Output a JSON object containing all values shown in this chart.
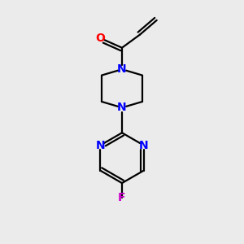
{
  "bg_color": "#ebebeb",
  "bond_color": "#000000",
  "N_color": "#0000ff",
  "O_color": "#ff0000",
  "F_color": "#cc00cc",
  "line_width": 1.6,
  "font_size": 10,
  "figsize": [
    3.0,
    3.0
  ],
  "dpi": 100,
  "xlim": [
    0,
    10
  ],
  "ylim": [
    0,
    10
  ]
}
